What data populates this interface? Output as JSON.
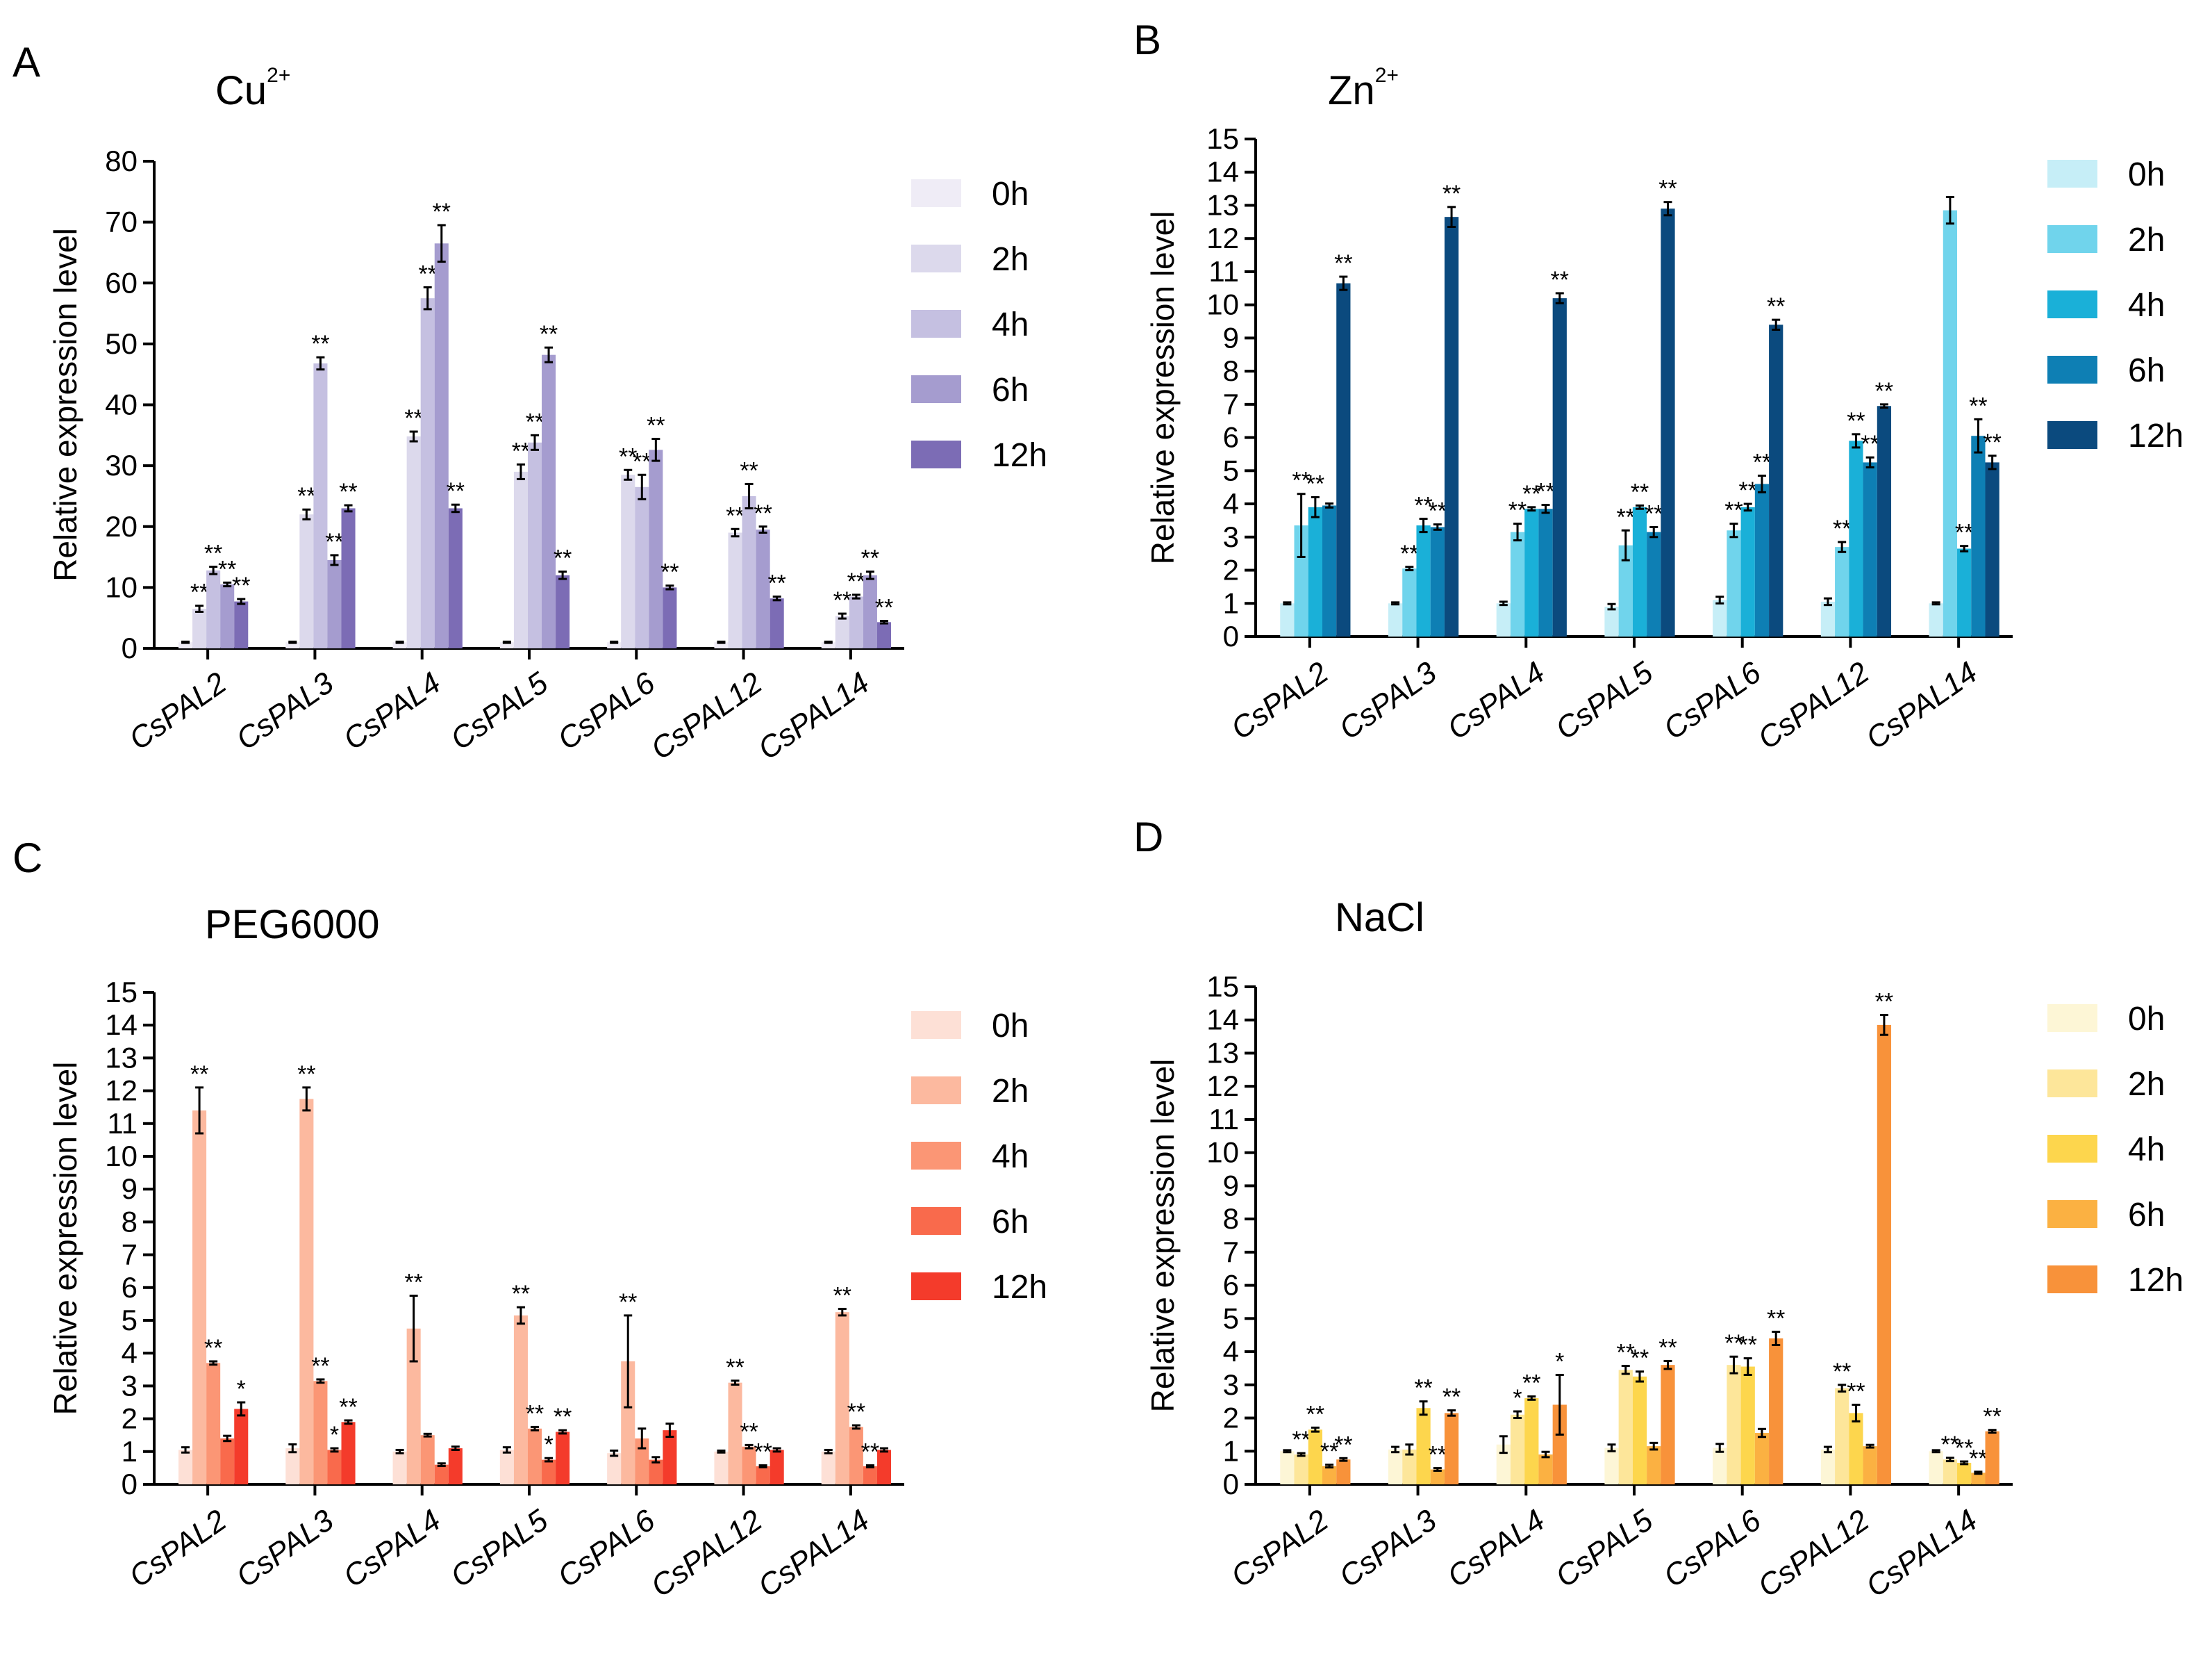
{
  "chart_data": [
    {
      "type": "bar",
      "panel_label": "A",
      "title": "Cu",
      "title_sup": "2+",
      "ylabel": "Relative expression level",
      "ylim": [
        0,
        80
      ],
      "yticks": [
        0,
        10,
        20,
        30,
        40,
        50,
        60,
        70,
        80
      ],
      "categories": [
        "CsPAL2",
        "CsPAL3",
        "CsPAL4",
        "CsPAL5",
        "CsPAL6",
        "CsPAL12",
        "CsPAL14"
      ],
      "legend_position": "right",
      "series": [
        {
          "name": "0h",
          "color": "#efecf6",
          "values": [
            1,
            1,
            1,
            1,
            1,
            1,
            1
          ],
          "errors": [
            0.1,
            0.1,
            0.1,
            0.1,
            0.1,
            0.1,
            0.1
          ],
          "sig": [
            "",
            "",
            "",
            "",
            "",
            "",
            ""
          ]
        },
        {
          "name": "2h",
          "color": "#dcd9ec",
          "values": [
            6.5,
            22,
            34.8,
            29,
            28.5,
            19,
            5.3
          ],
          "errors": [
            0.5,
            0.8,
            0.8,
            1.2,
            0.8,
            0.6,
            0.4
          ],
          "sig": [
            "**",
            "**",
            "**",
            "**",
            "**",
            "**",
            "**"
          ]
        },
        {
          "name": "4h",
          "color": "#c5c0e1",
          "values": [
            12.8,
            46.8,
            57.5,
            33.8,
            26.5,
            25,
            8.5
          ],
          "errors": [
            0.6,
            1.0,
            1.8,
            1.2,
            2.0,
            2.0,
            0.3
          ],
          "sig": [
            "**",
            "**",
            "**",
            "**",
            "**",
            "**",
            "**"
          ]
        },
        {
          "name": "6h",
          "color": "#a59ccf",
          "values": [
            10.5,
            14.5,
            66.5,
            48.2,
            32.6,
            19.5,
            12
          ],
          "errors": [
            0.3,
            0.8,
            3.0,
            1.2,
            1.8,
            0.5,
            0.6
          ],
          "sig": [
            "**",
            "**",
            "**",
            "**",
            "**",
            "**",
            "**"
          ]
        },
        {
          "name": "12h",
          "color": "#7c6cb5",
          "values": [
            7.7,
            23,
            23,
            12,
            10,
            8.2,
            4.3
          ],
          "errors": [
            0.4,
            0.5,
            0.6,
            0.6,
            0.3,
            0.3,
            0.2
          ],
          "sig": [
            "**",
            "**",
            "**",
            "**",
            "**",
            "**",
            "**"
          ]
        }
      ]
    },
    {
      "type": "bar",
      "panel_label": "B",
      "title": "Zn",
      "title_sup": "2+",
      "ylabel": "Relative expression level",
      "ylim": [
        0,
        15
      ],
      "yticks": [
        0,
        1,
        2,
        3,
        4,
        5,
        6,
        7,
        8,
        9,
        10,
        11,
        12,
        13,
        14,
        15
      ],
      "categories": [
        "CsPAL2",
        "CsPAL3",
        "CsPAL4",
        "CsPAL5",
        "CsPAL6",
        "CsPAL12",
        "CsPAL14"
      ],
      "legend_position": "right",
      "series": [
        {
          "name": "0h",
          "color": "#c6eef7",
          "values": [
            1,
            1,
            1,
            0.9,
            1.1,
            1.05,
            1
          ],
          "errors": [
            0.03,
            0.03,
            0.05,
            0.08,
            0.1,
            0.1,
            0.03
          ],
          "sig": [
            "",
            "",
            "",
            "",
            "",
            "",
            ""
          ]
        },
        {
          "name": "2h",
          "color": "#70d4ec",
          "values": [
            3.35,
            2.05,
            3.15,
            2.75,
            3.2,
            2.7,
            12.85
          ],
          "errors": [
            0.95,
            0.05,
            0.25,
            0.45,
            0.2,
            0.15,
            0.4
          ],
          "sig": [
            "**",
            "**",
            "**",
            "**",
            "**",
            "**",
            ""
          ]
        },
        {
          "name": "4h",
          "color": "#1ab0d8",
          "values": [
            3.9,
            3.35,
            3.85,
            3.9,
            3.9,
            5.9,
            2.65
          ],
          "errors": [
            0.3,
            0.2,
            0.05,
            0.05,
            0.1,
            0.2,
            0.08
          ],
          "sig": [
            "**",
            "**",
            "**",
            "**",
            "**",
            "**",
            "**"
          ]
        },
        {
          "name": "6h",
          "color": "#0e7fb4",
          "values": [
            3.95,
            3.3,
            3.85,
            3.15,
            4.6,
            5.25,
            6.05
          ],
          "errors": [
            0.06,
            0.08,
            0.12,
            0.15,
            0.25,
            0.15,
            0.5
          ],
          "sig": [
            "",
            "**",
            "**",
            "**",
            "**",
            "**",
            "**"
          ]
        },
        {
          "name": "12h",
          "color": "#0b4a7e",
          "values": [
            10.65,
            12.65,
            10.2,
            12.9,
            9.4,
            6.95,
            5.25
          ],
          "errors": [
            0.2,
            0.3,
            0.15,
            0.2,
            0.15,
            0.05,
            0.2
          ],
          "sig": [
            "**",
            "**",
            "**",
            "**",
            "**",
            "**",
            "**"
          ]
        }
      ]
    },
    {
      "type": "bar",
      "panel_label": "C",
      "title": "PEG6000",
      "ylabel": "Relative expression level",
      "ylim": [
        0,
        15
      ],
      "yticks": [
        0,
        1,
        2,
        3,
        4,
        5,
        6,
        7,
        8,
        9,
        10,
        11,
        12,
        13,
        14,
        15
      ],
      "categories": [
        "CsPAL2",
        "CsPAL3",
        "CsPAL4",
        "CsPAL5",
        "CsPAL6",
        "CsPAL12",
        "CsPAL14"
      ],
      "legend_position": "right",
      "series": [
        {
          "name": "0h",
          "color": "#fde0d6",
          "values": [
            1.05,
            1.1,
            1,
            1.05,
            0.95,
            1,
            1
          ],
          "errors": [
            0.08,
            0.12,
            0.05,
            0.08,
            0.08,
            0.03,
            0.05
          ],
          "sig": [
            "",
            "",
            "",
            "",
            "",
            "",
            ""
          ]
        },
        {
          "name": "2h",
          "color": "#fcb99f",
          "values": [
            11.4,
            11.75,
            4.75,
            5.15,
            3.75,
            3.1,
            5.25
          ],
          "errors": [
            0.7,
            0.35,
            1.0,
            0.25,
            1.4,
            0.06,
            0.1
          ],
          "sig": [
            "**",
            "**",
            "**",
            "**",
            "**",
            "**",
            "**"
          ]
        },
        {
          "name": "4h",
          "color": "#fb9675",
          "values": [
            3.7,
            3.15,
            1.5,
            1.7,
            1.4,
            1.15,
            1.75
          ],
          "errors": [
            0.05,
            0.05,
            0.04,
            0.05,
            0.3,
            0.05,
            0.05
          ],
          "sig": [
            "**",
            "**",
            "",
            "**",
            "",
            "**",
            "**"
          ]
        },
        {
          "name": "6h",
          "color": "#f96a4c",
          "values": [
            1.4,
            1.05,
            0.6,
            0.75,
            0.75,
            0.55,
            0.55
          ],
          "errors": [
            0.08,
            0.05,
            0.04,
            0.05,
            0.08,
            0.03,
            0.03
          ],
          "sig": [
            "",
            "*",
            "",
            "*",
            "",
            "**",
            "**"
          ]
        },
        {
          "name": "12h",
          "color": "#f43b2b",
          "values": [
            2.3,
            1.9,
            1.1,
            1.6,
            1.65,
            1.05,
            1.05
          ],
          "errors": [
            0.2,
            0.05,
            0.05,
            0.05,
            0.2,
            0.05,
            0.05
          ],
          "sig": [
            "*",
            "**",
            "",
            "**",
            "",
            "",
            ""
          ]
        }
      ]
    },
    {
      "type": "bar",
      "panel_label": "D",
      "title": "NaCl",
      "ylabel": "Relative expression level",
      "ylim": [
        0,
        15
      ],
      "yticks": [
        0,
        1,
        2,
        3,
        4,
        5,
        6,
        7,
        8,
        9,
        10,
        11,
        12,
        13,
        14,
        15
      ],
      "categories": [
        "CsPAL2",
        "CsPAL3",
        "CsPAL4",
        "CsPAL5",
        "CsPAL6",
        "CsPAL12",
        "CsPAL14"
      ],
      "legend_position": "right",
      "series": [
        {
          "name": "0h",
          "color": "#fdf6d6",
          "values": [
            1,
            1.05,
            1.2,
            1.1,
            1.1,
            1.05,
            1
          ],
          "errors": [
            0.03,
            0.08,
            0.25,
            0.1,
            0.12,
            0.08,
            0.03
          ],
          "sig": [
            "",
            "",
            "",
            "",
            "",
            "",
            ""
          ]
        },
        {
          "name": "2h",
          "color": "#fde69a",
          "values": [
            0.9,
            1.05,
            2.1,
            3.45,
            3.6,
            2.9,
            0.75
          ],
          "errors": [
            0.04,
            0.15,
            0.1,
            0.12,
            0.25,
            0.1,
            0.05
          ],
          "sig": [
            "**",
            "",
            "*",
            "**",
            "**",
            "**",
            "**"
          ]
        },
        {
          "name": "4h",
          "color": "#fdd64d",
          "values": [
            1.65,
            2.3,
            2.6,
            3.25,
            3.55,
            2.15,
            0.65
          ],
          "errors": [
            0.06,
            0.2,
            0.05,
            0.15,
            0.25,
            0.25,
            0.04
          ],
          "sig": [
            "**",
            "**",
            "**",
            "**",
            "**",
            "**",
            "**"
          ]
        },
        {
          "name": "6h",
          "color": "#fbb142",
          "values": [
            0.55,
            0.45,
            0.9,
            1.15,
            1.55,
            1.15,
            0.35
          ],
          "errors": [
            0.04,
            0.04,
            0.08,
            0.1,
            0.12,
            0.04,
            0.03
          ],
          "sig": [
            "**",
            "**",
            "",
            "",
            "",
            "",
            "**"
          ]
        },
        {
          "name": "12h",
          "color": "#f8923a",
          "values": [
            0.75,
            2.15,
            2.4,
            3.6,
            4.4,
            13.85,
            1.6
          ],
          "errors": [
            0.04,
            0.08,
            0.9,
            0.12,
            0.2,
            0.3,
            0.04
          ],
          "sig": [
            "**",
            "**",
            "*",
            "**",
            "**",
            "**",
            "**"
          ]
        }
      ]
    }
  ]
}
